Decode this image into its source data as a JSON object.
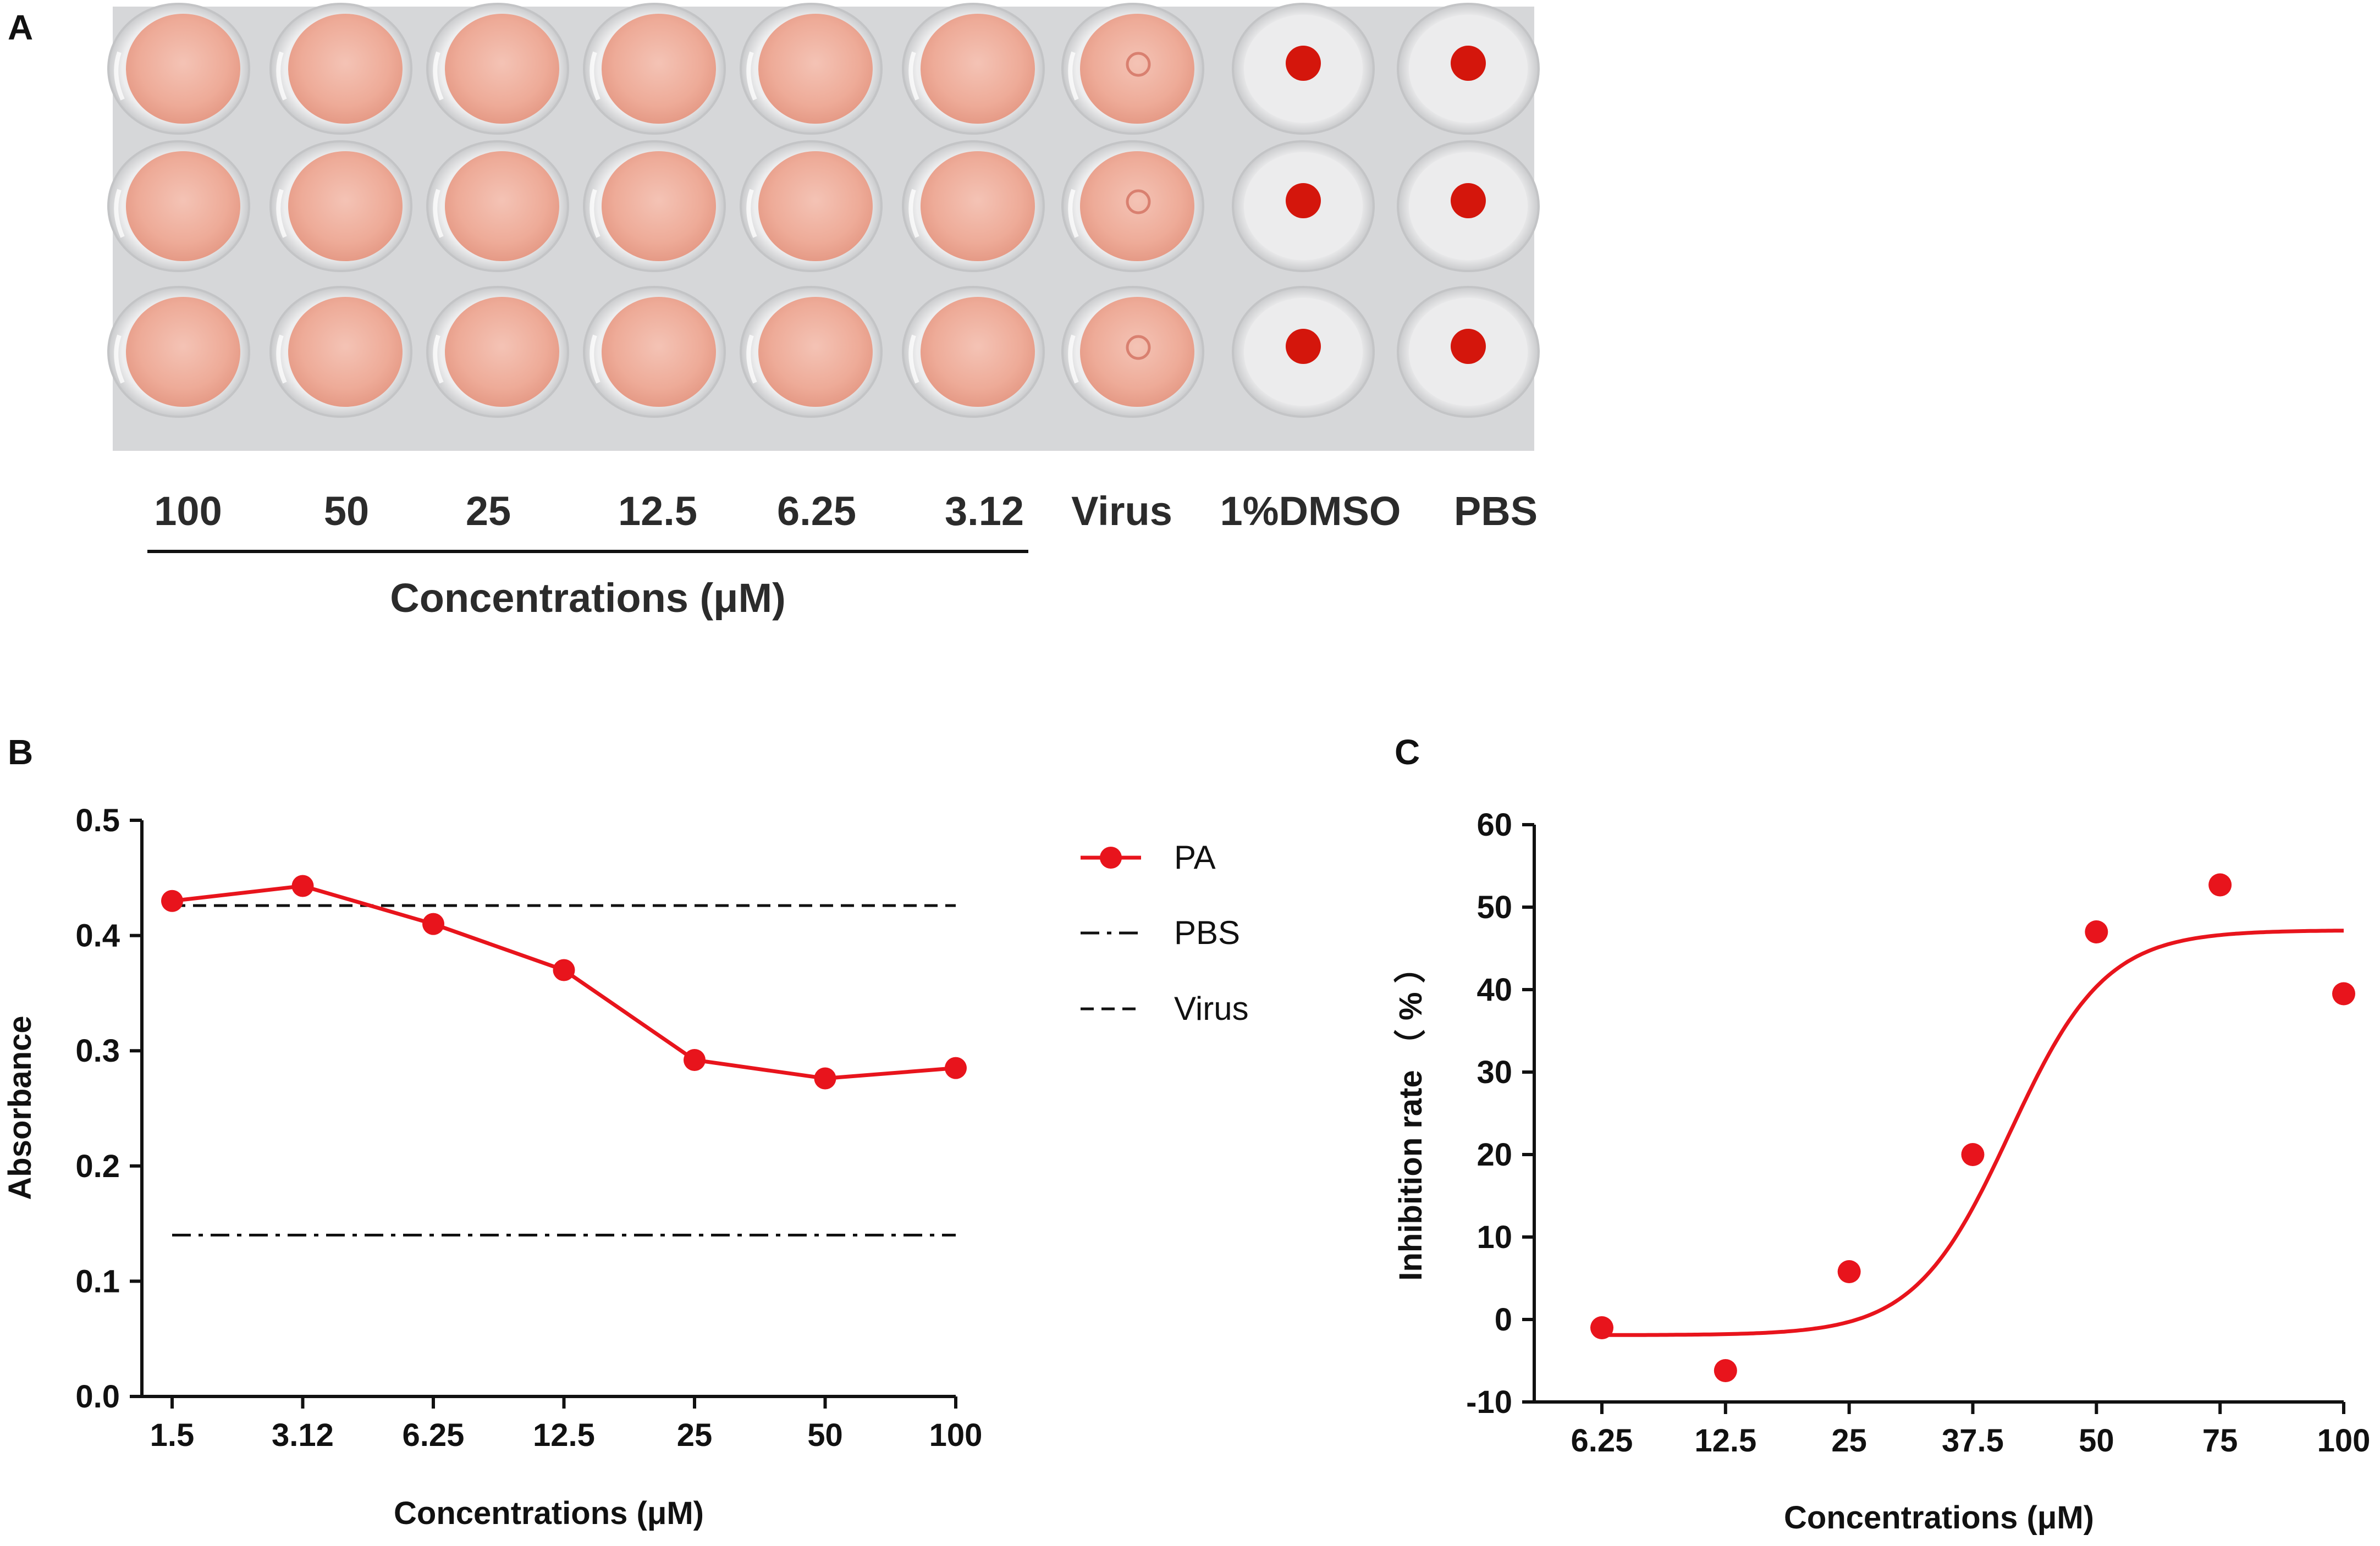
{
  "panels": {
    "a": {
      "letter": "A",
      "rows": 3,
      "wells": [
        {
          "label": "100",
          "type": "sample"
        },
        {
          "label": "50",
          "type": "sample"
        },
        {
          "label": "25",
          "type": "sample"
        },
        {
          "label": "12.5",
          "type": "sample"
        },
        {
          "label": "6.25",
          "type": "sample"
        },
        {
          "label": "3.12",
          "type": "sample"
        },
        {
          "label": "Virus",
          "type": "virus"
        },
        {
          "label": "1%DMSO",
          "type": "button"
        },
        {
          "label": "PBS",
          "type": "button"
        }
      ],
      "group_label": "Concentrations (μM)",
      "colors": {
        "plate": "#d6d7d9",
        "well_fill": "#f0b4a4",
        "button": "#d4160c"
      }
    },
    "b": {
      "letter": "B"
    },
    "c": {
      "letter": "C"
    }
  },
  "chart_data": [
    {
      "id": "B",
      "type": "line",
      "title": "",
      "xlabel": "Concentrations (μM)",
      "ylabel": "Absorbance",
      "categories": [
        "1.5",
        "3.12",
        "6.25",
        "12.5",
        "25",
        "50",
        "100"
      ],
      "ylim": [
        0,
        0.5
      ],
      "yticks": [
        "0.0",
        "0.1",
        "0.2",
        "0.3",
        "0.4",
        "0.5"
      ],
      "grid": false,
      "legend_position": "right",
      "series": [
        {
          "name": "PA",
          "style": "line-marker",
          "color": "#e8141c",
          "values": [
            0.43,
            0.443,
            0.41,
            0.37,
            0.292,
            0.276,
            0.285
          ]
        }
      ],
      "reference_lines": [
        {
          "name": "PBS",
          "style": "dash-dot",
          "value": 0.14
        },
        {
          "name": "Virus",
          "style": "dashed",
          "value": 0.426
        }
      ]
    },
    {
      "id": "C",
      "type": "scatter",
      "title": "",
      "xlabel": "Concentrations (μM)",
      "ylabel": "Inhibition rate （ % ）",
      "categories": [
        "6.25",
        "12.5",
        "25",
        "37.5",
        "50",
        "75",
        "100"
      ],
      "ylim": [
        -10,
        60
      ],
      "yticks": [
        "-10",
        "0",
        "10",
        "20",
        "30",
        "40",
        "50",
        "60"
      ],
      "grid": false,
      "color": "#e8141c",
      "points": [
        -1,
        -6.2,
        5.8,
        20,
        47,
        52.7,
        39.5
      ],
      "fit": {
        "type": "sigmoid",
        "bottom": -1.9,
        "top": 47.2,
        "midpoint_index": 3.3,
        "slope": 2.6
      }
    }
  ]
}
